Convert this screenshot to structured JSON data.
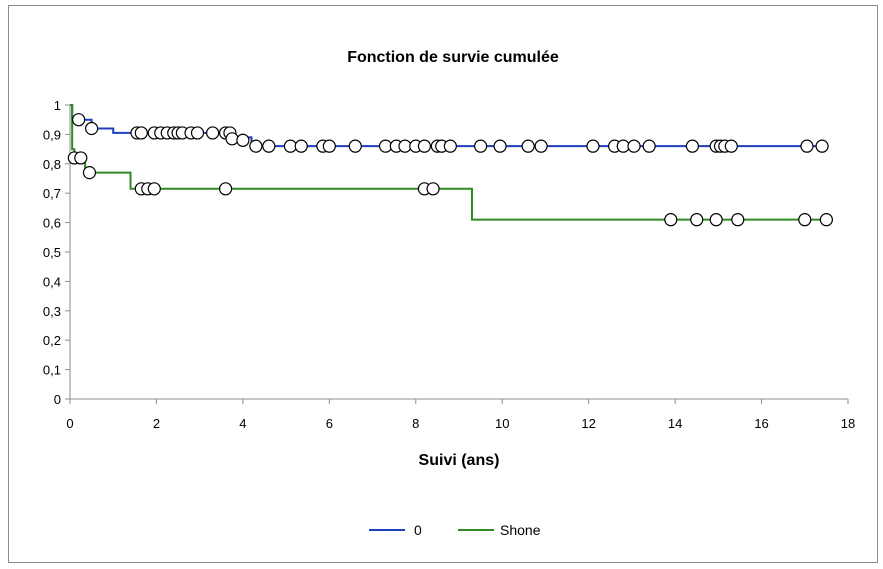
{
  "chart_data": {
    "type": "line",
    "title": "Fonction de survie cumulée",
    "xlabel": "Suivi (ans)",
    "ylabel": "",
    "xlim": [
      0,
      18
    ],
    "ylim": [
      0,
      1
    ],
    "x_ticks": [
      "0",
      "2",
      "4",
      "6",
      "8",
      "10",
      "12",
      "14",
      "16",
      "18"
    ],
    "y_ticks": [
      "0",
      "0,1",
      "0,2",
      "0,3",
      "0,4",
      "0,5",
      "0,6",
      "0,7",
      "0,8",
      "0,9",
      "1"
    ],
    "grid": false,
    "legend_position": "bottom",
    "series": [
      {
        "name": "0",
        "color": "#1f3fbf",
        "steps": [
          [
            0,
            1
          ],
          [
            0.05,
            0.95
          ],
          [
            0.5,
            0.92
          ],
          [
            1.0,
            0.905
          ],
          [
            3.7,
            0.89
          ],
          [
            4.2,
            0.86
          ],
          [
            17.4,
            0.86
          ]
        ],
        "censored": [
          [
            0.2,
            0.95
          ],
          [
            0.5,
            0.92
          ],
          [
            1.55,
            0.905
          ],
          [
            1.65,
            0.905
          ],
          [
            1.95,
            0.905
          ],
          [
            2.1,
            0.905
          ],
          [
            2.25,
            0.905
          ],
          [
            2.4,
            0.905
          ],
          [
            2.5,
            0.905
          ],
          [
            2.6,
            0.905
          ],
          [
            2.8,
            0.905
          ],
          [
            2.95,
            0.905
          ],
          [
            3.3,
            0.905
          ],
          [
            3.6,
            0.905
          ],
          [
            3.7,
            0.905
          ],
          [
            3.75,
            0.885
          ],
          [
            4.0,
            0.88
          ],
          [
            4.3,
            0.86
          ],
          [
            4.6,
            0.86
          ],
          [
            5.1,
            0.86
          ],
          [
            5.35,
            0.86
          ],
          [
            5.85,
            0.86
          ],
          [
            6.0,
            0.86
          ],
          [
            6.6,
            0.86
          ],
          [
            7.3,
            0.86
          ],
          [
            7.55,
            0.86
          ],
          [
            7.75,
            0.86
          ],
          [
            8.0,
            0.86
          ],
          [
            8.2,
            0.86
          ],
          [
            8.5,
            0.86
          ],
          [
            8.6,
            0.86
          ],
          [
            8.8,
            0.86
          ],
          [
            9.5,
            0.86
          ],
          [
            9.95,
            0.86
          ],
          [
            10.6,
            0.86
          ],
          [
            10.9,
            0.86
          ],
          [
            12.1,
            0.86
          ],
          [
            12.6,
            0.86
          ],
          [
            12.8,
            0.86
          ],
          [
            13.05,
            0.86
          ],
          [
            13.4,
            0.86
          ],
          [
            14.4,
            0.86
          ],
          [
            14.95,
            0.86
          ],
          [
            15.05,
            0.86
          ],
          [
            15.15,
            0.86
          ],
          [
            15.3,
            0.86
          ],
          [
            17.05,
            0.86
          ],
          [
            17.4,
            0.86
          ]
        ]
      },
      {
        "name": "Shone",
        "color": "#2f8a24",
        "steps": [
          [
            0,
            1
          ],
          [
            0.05,
            0.85
          ],
          [
            0.1,
            0.82
          ],
          [
            0.35,
            0.77
          ],
          [
            1.4,
            0.715
          ],
          [
            9.3,
            0.61
          ],
          [
            17.5,
            0.61
          ]
        ],
        "censored": [
          [
            0.1,
            0.82
          ],
          [
            0.25,
            0.82
          ],
          [
            0.45,
            0.77
          ],
          [
            1.65,
            0.715
          ],
          [
            1.8,
            0.715
          ],
          [
            1.95,
            0.715
          ],
          [
            3.6,
            0.715
          ],
          [
            8.2,
            0.715
          ],
          [
            8.4,
            0.715
          ],
          [
            13.9,
            0.61
          ],
          [
            14.5,
            0.61
          ],
          [
            14.95,
            0.61
          ],
          [
            15.45,
            0.61
          ],
          [
            17.0,
            0.61
          ],
          [
            17.5,
            0.61
          ]
        ]
      }
    ]
  }
}
